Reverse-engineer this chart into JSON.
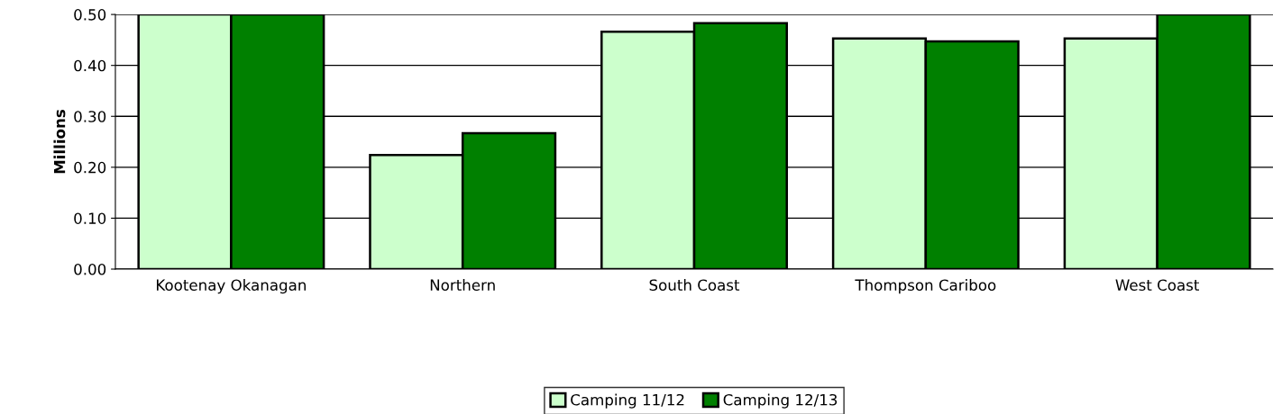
{
  "chart_data": {
    "type": "bar",
    "ylabel": "Millions",
    "categories": [
      "Kootenay Okanagan",
      "Northern",
      "South Coast",
      "Thompson Cariboo",
      "West Coast"
    ],
    "series": [
      {
        "name": "Camping 11/12",
        "color": "#ccffcc",
        "values": [
          0.5,
          0.224,
          0.466,
          0.453,
          0.453
        ]
      },
      {
        "name": "Camping 12/13",
        "color": "#008000",
        "values": [
          0.5,
          0.267,
          0.483,
          0.447,
          0.5
        ]
      }
    ],
    "ylim": [
      0,
      0.5
    ],
    "yticks": [
      {
        "value": 0,
        "label": "0.00"
      },
      {
        "value": 0.1,
        "label": "0.10"
      },
      {
        "value": 0.2,
        "label": "0.20"
      },
      {
        "value": 0.3,
        "label": "0.30"
      },
      {
        "value": 0.4,
        "label": "0.40"
      },
      {
        "value": 0.5,
        "label": "0.50"
      }
    ],
    "grid": "y",
    "legend": "bottom"
  }
}
